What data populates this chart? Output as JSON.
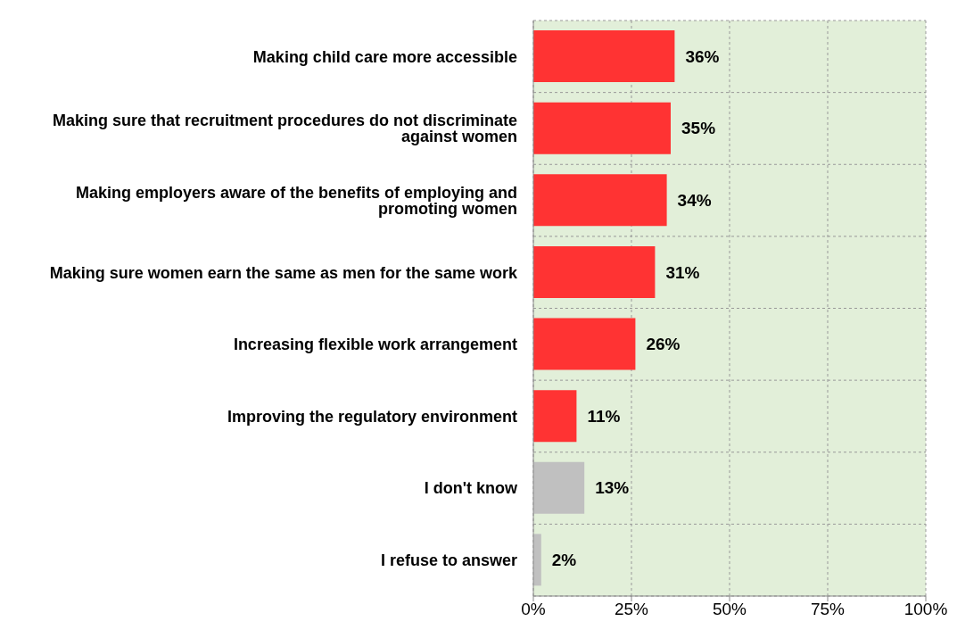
{
  "chart_data": {
    "type": "bar",
    "orientation": "horizontal",
    "categories": [
      "Making child care more accessible",
      "Making sure that recruitment procedures do not discriminate against women",
      "Making employers aware of the benefits of employing and promoting women",
      "Making sure women earn the same as men for the same work",
      "Increasing flexible work arrangement",
      "Improving the regulatory environment",
      "I don't know",
      "I refuse to answer"
    ],
    "values": [
      36,
      35,
      34,
      31,
      26,
      11,
      13,
      2
    ],
    "colors": [
      "#ff3333",
      "#ff3333",
      "#ff3333",
      "#ff3333",
      "#ff3333",
      "#ff3333",
      "#c0c0c0",
      "#c0c0c0"
    ],
    "value_labels": [
      "36%",
      "35%",
      "34%",
      "31%",
      "26%",
      "11%",
      "13%",
      "2%"
    ],
    "xlim": [
      0,
      100
    ],
    "xticks": [
      {
        "value": 0,
        "label": "0%"
      },
      {
        "value": 25,
        "label": "25%"
      },
      {
        "value": 50,
        "label": "50%"
      },
      {
        "value": 75,
        "label": "75%"
      },
      {
        "value": 100,
        "label": "100%"
      }
    ],
    "grid": true
  }
}
